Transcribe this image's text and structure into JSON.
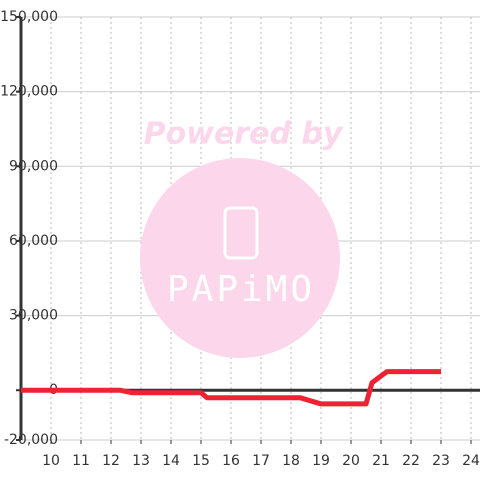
{
  "chart_data": {
    "type": "line",
    "x": [
      9,
      12.3,
      12.7,
      15,
      15.2,
      18.3,
      19,
      20.5,
      20.7,
      21.2,
      23
    ],
    "series": [
      {
        "color": "#ee2233",
        "values": [
          0,
          0,
          -1000,
          -1000,
          -3000,
          -3000,
          -5500,
          -5500,
          3000,
          7500,
          7500
        ]
      }
    ],
    "xlim": [
      9,
      24.3
    ],
    "xticks": [
      10,
      11,
      12,
      13,
      14,
      15,
      16,
      17,
      18,
      19,
      20,
      21,
      22,
      23,
      24
    ],
    "ylim": [
      -20000,
      150000
    ],
    "yticks": [
      {
        "value": -20000,
        "label": "-20,000"
      },
      0,
      {
        "value": 30000,
        "label": "30,000"
      },
      {
        "value": 60000,
        "label": "60,000"
      },
      {
        "value": 90000,
        "label": "90,000"
      },
      {
        "value": 120000,
        "label": "120,000"
      },
      {
        "value": 150000,
        "label": "150,000"
      }
    ],
    "grid": true,
    "watermark": {
      "line1": "Powered by",
      "line2": "PAPiMO"
    }
  }
}
